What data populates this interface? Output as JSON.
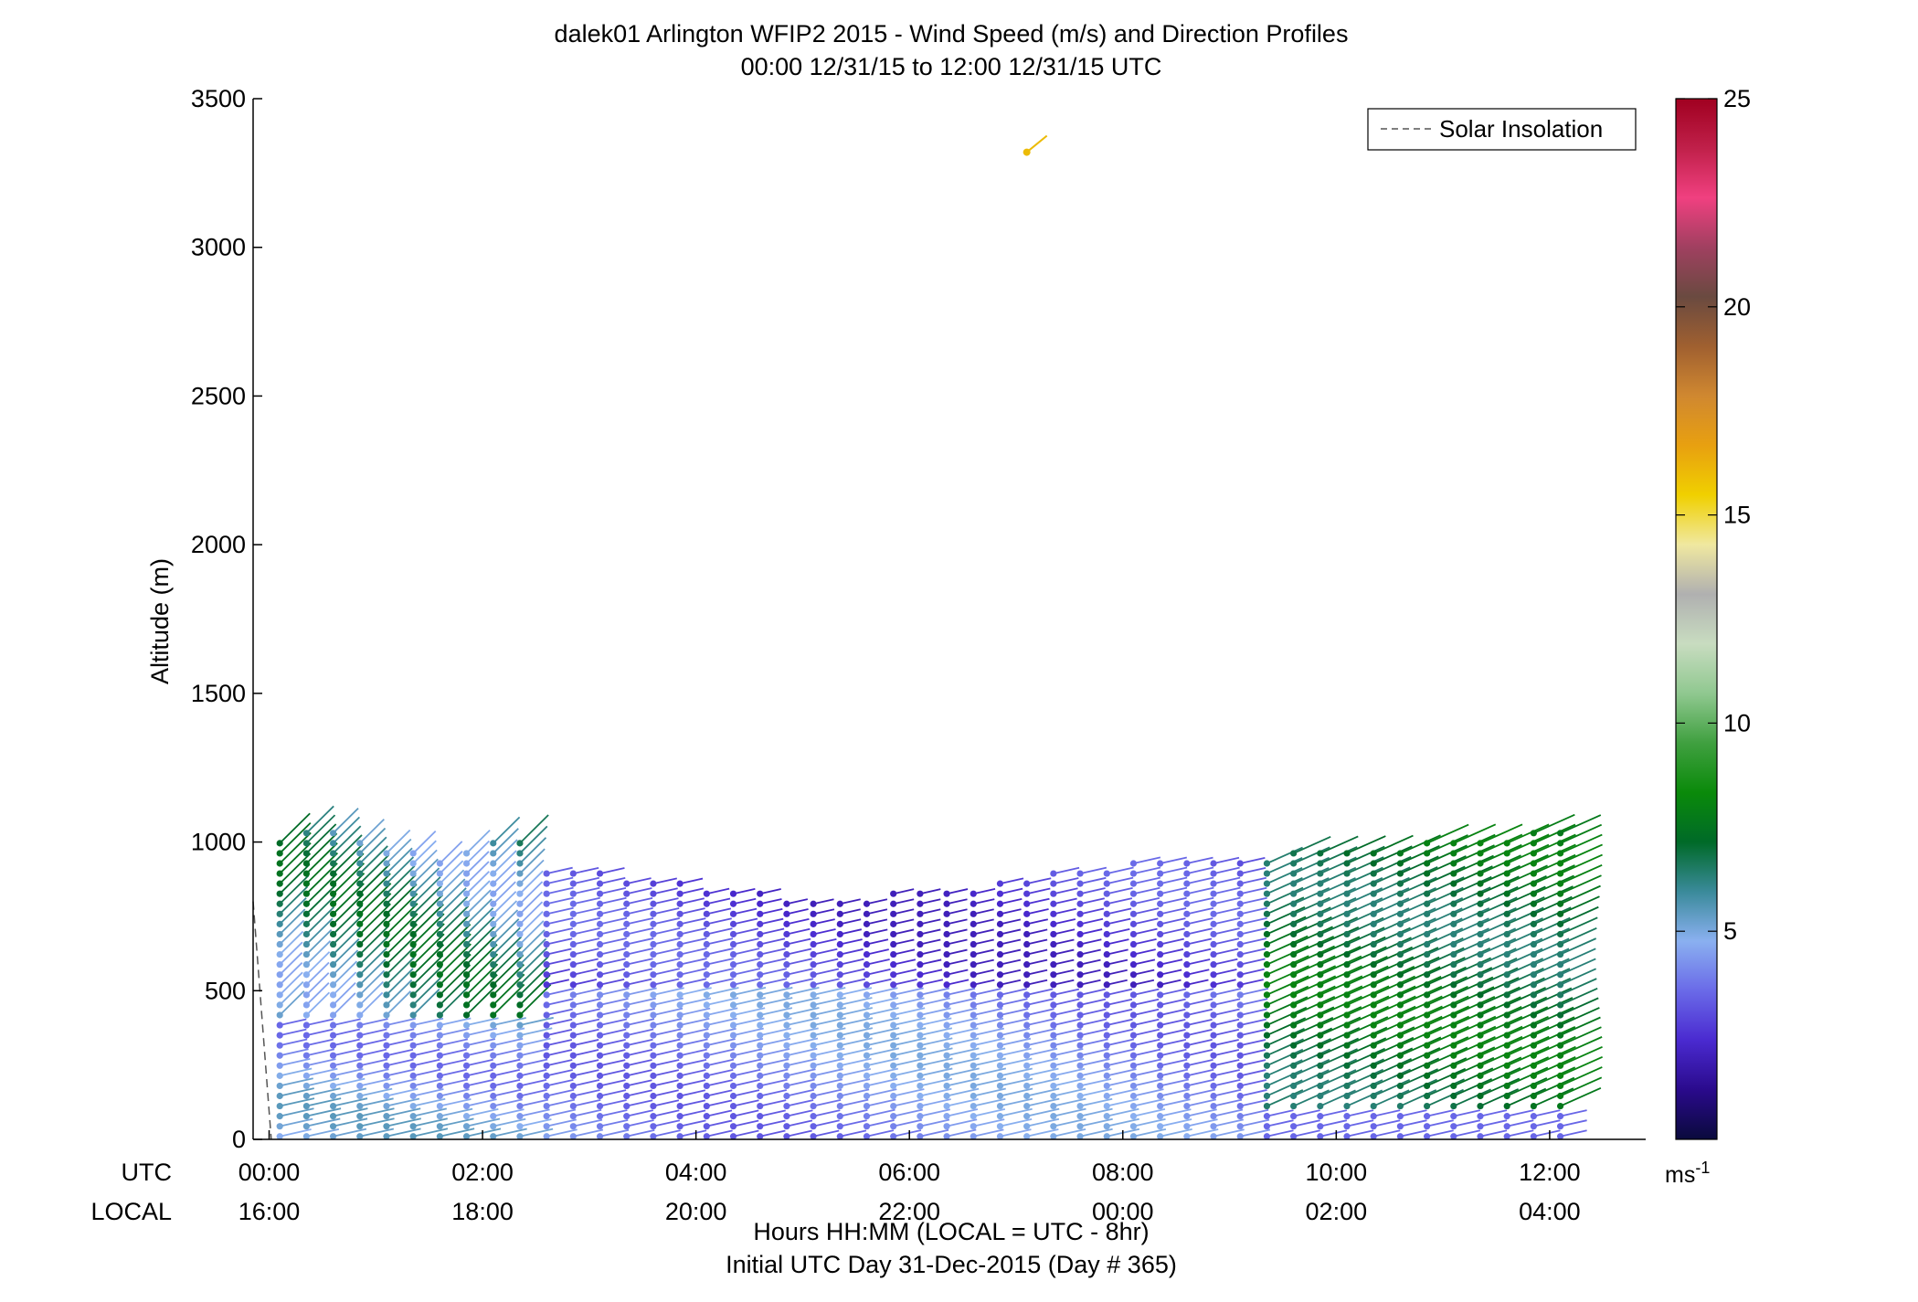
{
  "chart_data": {
    "type": "wind-barb-profile",
    "title": "dalek01 Arlington WFIP2 2015 - Wind Speed (m/s) and Direction Profiles",
    "subtitle": "00:00 12/31/15 to 12:00 12/31/15  UTC",
    "ylabel": "Altitude (m)",
    "xlabel": "Hours HH:MM  (LOCAL = UTC - 8hr)",
    "xlabel2": "Initial UTC Day 31-Dec-2015 (Day # 365)",
    "ylim": [
      0,
      3500
    ],
    "yticks": [
      "0",
      "500",
      "1000",
      "1500",
      "2000",
      "2500",
      "3000",
      "3500"
    ],
    "xlim_hours": [
      -0.15,
      12.9
    ],
    "xtick_hours": [
      0,
      2,
      4,
      6,
      8,
      10,
      12
    ],
    "utc_row_label": "UTC",
    "local_row_label": "LOCAL",
    "utc_ticks": [
      "00:00",
      "02:00",
      "04:00",
      "06:00",
      "08:00",
      "10:00",
      "12:00"
    ],
    "local_ticks": [
      "16:00",
      "18:00",
      "20:00",
      "22:00",
      "00:00",
      "02:00",
      "04:00"
    ],
    "legend": {
      "label": "Solar Insolation",
      "placement": "top-right",
      "color": "#555555"
    },
    "solar_insolation": {
      "hours": [
        -0.15,
        0.02
      ],
      "altitude_m": [
        800,
        0
      ]
    },
    "colorbar": {
      "min": 0,
      "max": 25,
      "ticks": [
        "5",
        "10",
        "15",
        "20",
        "25"
      ],
      "unit": "ms",
      "unit_exp": "-1",
      "colors": [
        "#0a0a3c",
        "#2a0a8c",
        "#4a2ad0",
        "#6a6ae8",
        "#8ab0f0",
        "#3a8a9a",
        "#006a28",
        "#0a8a0a",
        "#40a040",
        "#90c890",
        "#c8dcc0",
        "#b0b0b0",
        "#f0e8a0",
        "#f0d000",
        "#e8a010",
        "#d08830",
        "#a06030",
        "#6a4a40",
        "#a04060",
        "#f04080",
        "#c0204a",
        "#a00020"
      ]
    },
    "profiles": {
      "time_step_hours": 0.25,
      "time_start_hours": 0.1,
      "time_end_hours": 12.1,
      "altitude_levels_m": [
        0,
        1000
      ],
      "speed_range_ms": [
        2,
        9
      ],
      "direction_note": "westerly to south-westerly flow, barbs pointing up-right"
    },
    "isolated_point": {
      "hour": 7.1,
      "altitude_m": 3320,
      "speed_ms": 16
    }
  }
}
